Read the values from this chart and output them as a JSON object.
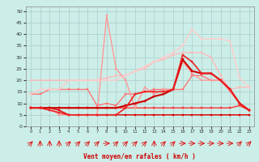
{
  "background_color": "#cceee8",
  "grid_color": "#aacccc",
  "xlabel": "Vent moyen/en rafales ( km/h )",
  "yticks": [
    0,
    5,
    10,
    15,
    20,
    25,
    30,
    35,
    40,
    45,
    50
  ],
  "ylim": [
    0,
    52
  ],
  "xlim": [
    -0.5,
    23.5
  ],
  "series": [
    {
      "x": [
        0,
        1,
        2,
        3,
        4,
        5,
        6,
        7,
        8,
        9,
        10,
        11,
        12,
        13,
        14,
        15,
        16,
        17,
        18,
        19,
        20,
        21,
        22,
        23
      ],
      "y": [
        8,
        8,
        8,
        7,
        5,
        5,
        5,
        5,
        5,
        5,
        5,
        5,
        5,
        5,
        5,
        5,
        5,
        5,
        5,
        5,
        5,
        5,
        5,
        5
      ],
      "color": "#dd0000",
      "lw": 1.0,
      "marker": "s",
      "ms": 1.5
    },
    {
      "x": [
        0,
        1,
        2,
        3,
        4,
        5,
        6,
        7,
        8,
        9,
        10,
        11,
        12,
        13,
        14,
        15,
        16,
        17,
        18,
        19,
        20,
        21,
        22,
        23
      ],
      "y": [
        8,
        8,
        8,
        8,
        8,
        8,
        8,
        8,
        8,
        8,
        8,
        8,
        8,
        8,
        8,
        8,
        8,
        8,
        8,
        8,
        8,
        8,
        9,
        7
      ],
      "color": "#ff3333",
      "lw": 1.0,
      "marker": "s",
      "ms": 1.5
    },
    {
      "x": [
        0,
        1,
        2,
        3,
        4,
        5,
        6,
        7,
        8,
        9,
        10,
        11,
        12,
        13,
        14,
        15,
        16,
        17,
        18,
        19,
        20,
        21,
        22,
        23
      ],
      "y": [
        14,
        14,
        16,
        16,
        16,
        16,
        16,
        9,
        10,
        9,
        14,
        14,
        15,
        16,
        16,
        16,
        16,
        22,
        22,
        20,
        20,
        16,
        10,
        7
      ],
      "color": "#ff7777",
      "lw": 1.0,
      "marker": "s",
      "ms": 1.5
    },
    {
      "x": [
        0,
        1,
        2,
        3,
        4,
        5,
        6,
        7,
        8,
        9,
        10,
        11,
        12,
        13,
        14,
        15,
        16,
        17,
        18,
        19,
        20,
        21,
        22,
        23
      ],
      "y": [
        20,
        20,
        20,
        20,
        20,
        20,
        20,
        20,
        21,
        22,
        22,
        24,
        25,
        28,
        29,
        31,
        32,
        32,
        32,
        30,
        22,
        16,
        17,
        17
      ],
      "color": "#ffbbbb",
      "lw": 1.0,
      "marker": "s",
      "ms": 1.5
    },
    {
      "x": [
        0,
        1,
        2,
        3,
        4,
        5,
        6,
        7,
        8,
        9,
        10,
        11,
        12,
        13,
        14,
        15,
        16,
        17,
        18,
        19,
        20,
        21,
        22,
        23
      ],
      "y": [
        8,
        8,
        8,
        5,
        5,
        5,
        5,
        5,
        48,
        25,
        20,
        8,
        17,
        14,
        16,
        16,
        28,
        23,
        20,
        20,
        20,
        15,
        10,
        7
      ],
      "color": "#ff9999",
      "lw": 1.0,
      "marker": "s",
      "ms": 1.5
    },
    {
      "x": [
        0,
        1,
        2,
        3,
        4,
        5,
        6,
        7,
        8,
        9,
        10,
        11,
        12,
        13,
        14,
        15,
        16,
        17,
        18,
        19,
        20,
        21,
        22,
        23
      ],
      "y": [
        14,
        16,
        16,
        16,
        20,
        20,
        20,
        20,
        20,
        20,
        22,
        24,
        26,
        28,
        30,
        32,
        35,
        42,
        38,
        38,
        38,
        37,
        21,
        17
      ],
      "color": "#ffcccc",
      "lw": 1.0,
      "marker": "s",
      "ms": 1.5
    },
    {
      "x": [
        0,
        1,
        2,
        3,
        4,
        5,
        6,
        7,
        8,
        9,
        10,
        11,
        12,
        13,
        14,
        15,
        16,
        17,
        18,
        19,
        20,
        21,
        22,
        23
      ],
      "y": [
        8,
        8,
        8,
        8,
        8,
        8,
        8,
        8,
        8,
        8,
        9,
        10,
        11,
        13,
        14,
        16,
        29,
        24,
        23,
        23,
        20,
        16,
        10,
        7
      ],
      "color": "#cc0000",
      "lw": 1.5,
      "marker": "s",
      "ms": 2.0
    },
    {
      "x": [
        0,
        1,
        2,
        3,
        4,
        5,
        6,
        7,
        8,
        9,
        10,
        11,
        12,
        13,
        14,
        15,
        16,
        17,
        18,
        19,
        20,
        21,
        22,
        23
      ],
      "y": [
        8,
        8,
        7,
        6,
        5,
        5,
        5,
        5,
        5,
        5,
        8,
        14,
        15,
        15,
        15,
        16,
        31,
        28,
        23,
        23,
        20,
        16,
        10,
        7
      ],
      "color": "#ee2222",
      "lw": 1.2,
      "marker": "s",
      "ms": 1.5
    }
  ],
  "arrow_angles": [
    45,
    90,
    90,
    90,
    45,
    45,
    45,
    45,
    0,
    45,
    45,
    45,
    45,
    90,
    45,
    45,
    0,
    0,
    0,
    0,
    0,
    0,
    45,
    45
  ]
}
